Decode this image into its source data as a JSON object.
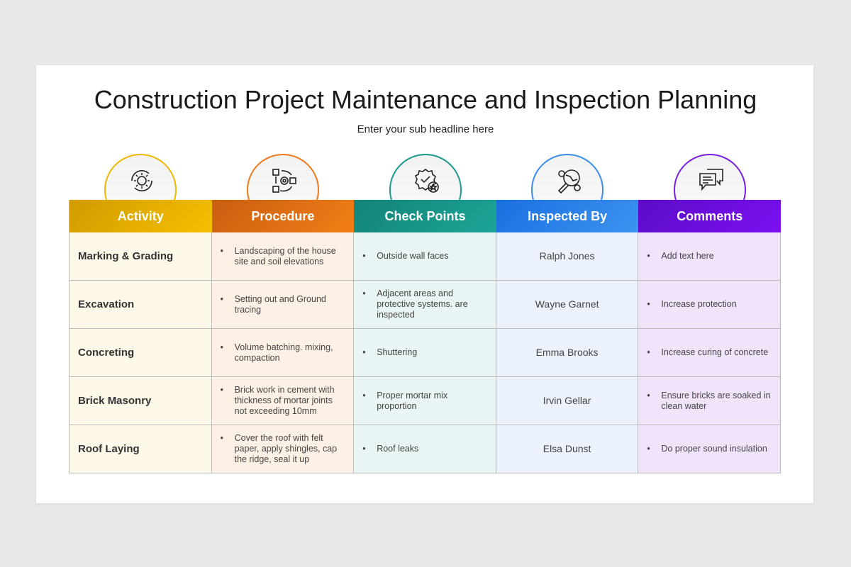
{
  "title": "Construction Project Maintenance and Inspection Planning",
  "subtitle": "Enter your sub headline here",
  "columns": [
    {
      "label": "Activity",
      "icon": "gear-cycle-icon",
      "color": "#f2b705",
      "grad": [
        "#d19a00",
        "#f6c000"
      ],
      "bg": "#fef8e8"
    },
    {
      "label": "Procedure",
      "icon": "process-checklist-icon",
      "color": "#ee7a1b",
      "grad": [
        "#c85e10",
        "#f27e16"
      ],
      "bg": "#fdf1e6"
    },
    {
      "label": "Check Points",
      "icon": "quality-badge-icon",
      "color": "#1a9a8c",
      "grad": [
        "#138378",
        "#1ba596"
      ],
      "bg": "#e8f5f4"
    },
    {
      "label": "Inspected By",
      "icon": "inspection-magnifier-icon",
      "color": "#3a8de8",
      "grad": [
        "#1a6fe0",
        "#3d93f0"
      ],
      "bg": "#ecf2fc"
    },
    {
      "label": "Comments",
      "icon": "chat-bubbles-icon",
      "color": "#7a1ee0",
      "grad": [
        "#5b0cc8",
        "#7b10f0"
      ],
      "bg": "#f1e4fa"
    }
  ],
  "rows": [
    {
      "activity": "Marking & Grading",
      "procedure": "Landscaping of the house site and soil elevations",
      "check": "Outside wall faces",
      "inspector": "Ralph Jones",
      "comment": "Add text here"
    },
    {
      "activity": "Excavation",
      "procedure": "Setting out and Ground tracing",
      "check": "Adjacent areas and protective systems. are inspected",
      "inspector": "Wayne Garnet",
      "comment": "Increase protection"
    },
    {
      "activity": "Concreting",
      "procedure": "Volume batching. mixing, compaction",
      "check": "Shuttering",
      "inspector": "Emma Brooks",
      "comment": "Increase curing of concrete"
    },
    {
      "activity": "Brick Masonry",
      "procedure": "Brick work in cement with thickness of mortar joints not exceeding 10mm",
      "check": "Proper mortar mix proportion",
      "inspector": "Irvin Gellar",
      "comment": "Ensure bricks are soaked in clean water"
    },
    {
      "activity": "Roof Laying",
      "procedure": "Cover the roof with felt paper, apply shingles, cap the ridge, seal it up",
      "check": "Roof leaks",
      "inspector": "Elsa Dunst",
      "comment": "Do proper sound insulation"
    }
  ]
}
